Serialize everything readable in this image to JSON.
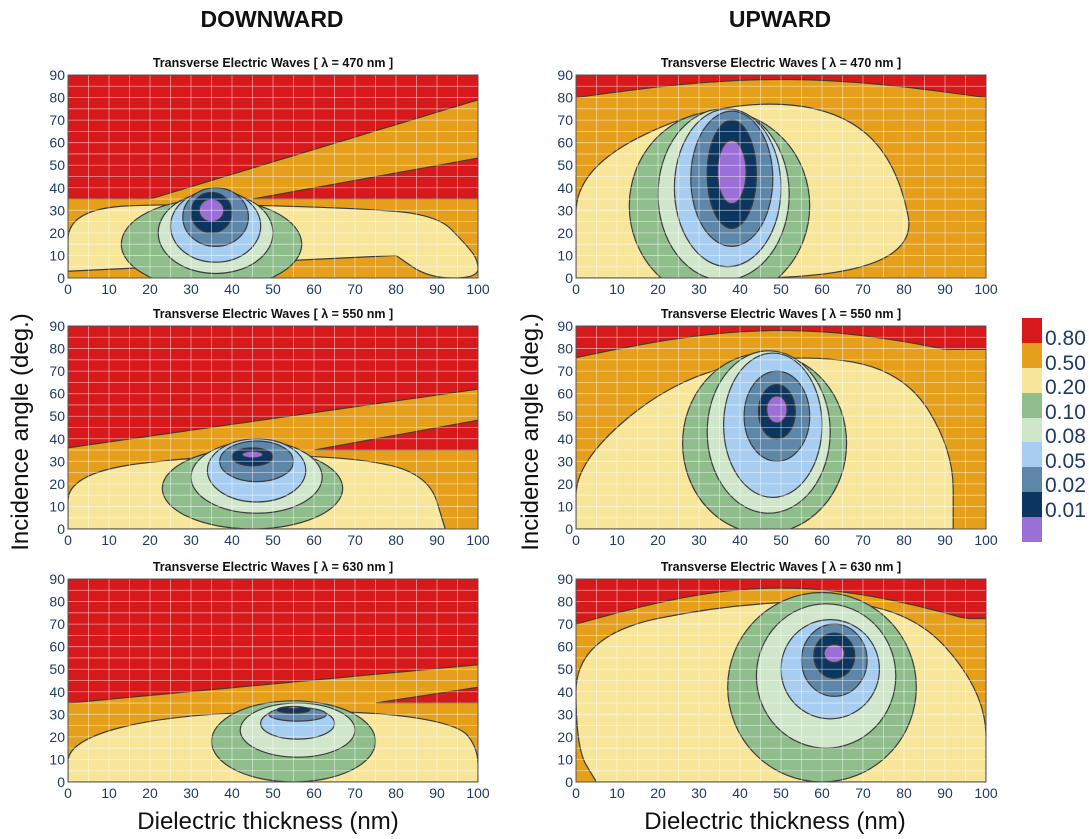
{
  "column_headings": {
    "left": "DOWNWARD",
    "right": "UPWARD"
  },
  "y_axis_label": "Incidence angle (deg.)",
  "x_axis_label": "Dielectric thickness (nm)",
  "colorbar": {
    "levels": [
      "0.80",
      "0.50",
      "0.20",
      "0.10",
      "0.08",
      "0.05",
      "0.02",
      "0.01"
    ],
    "colors": [
      "#d7191c",
      "#e59f1b",
      "#f7e69a",
      "#8fbe8c",
      "#cfe6cb",
      "#a7cdf0",
      "#5e86a8",
      "#0c3560",
      "#9a6fd6"
    ]
  },
  "chart_data": [
    {
      "type": "heatmap",
      "direction": "DOWNWARD",
      "wavelength_nm": 470,
      "title": "Transverse Electric Waves   [ λ = 470 nm ]",
      "xlim": [
        0,
        100
      ],
      "ylim": [
        0,
        90
      ],
      "x_ticks": [
        0,
        10,
        20,
        30,
        40,
        50,
        60,
        70,
        80,
        90,
        100
      ],
      "y_ticks": [
        0,
        10,
        20,
        30,
        40,
        50,
        60,
        70,
        80,
        90
      ],
      "grid": true,
      "min_value_location": {
        "x": 35,
        "y": 27
      }
    },
    {
      "type": "heatmap",
      "direction": "DOWNWARD",
      "wavelength_nm": 550,
      "title": "Transverse Electric Waves   [ λ = 550 nm ]",
      "xlim": [
        0,
        100
      ],
      "ylim": [
        0,
        90
      ],
      "x_ticks": [
        0,
        10,
        20,
        30,
        40,
        50,
        60,
        70,
        80,
        90,
        100
      ],
      "y_ticks": [
        0,
        10,
        20,
        30,
        40,
        50,
        60,
        70,
        80,
        90
      ],
      "grid": true,
      "min_value_location": {
        "x": 47,
        "y": 32
      }
    },
    {
      "type": "heatmap",
      "direction": "DOWNWARD",
      "wavelength_nm": 630,
      "title": "Transverse Electric Waves   [ λ = 630 nm ]",
      "xlim": [
        0,
        100
      ],
      "ylim": [
        0,
        90
      ],
      "x_ticks": [
        0,
        10,
        20,
        30,
        40,
        50,
        60,
        70,
        80,
        90,
        100
      ],
      "y_ticks": [
        0,
        10,
        20,
        30,
        40,
        50,
        60,
        70,
        80,
        90
      ],
      "grid": true,
      "min_value_location": {
        "x": 61,
        "y": 33
      }
    },
    {
      "type": "heatmap",
      "direction": "UPWARD",
      "wavelength_nm": 470,
      "title": "Transverse Electric Waves   [ λ = 470 nm ]",
      "xlim": [
        0,
        100
      ],
      "ylim": [
        0,
        90
      ],
      "x_ticks": [
        0,
        10,
        20,
        30,
        40,
        50,
        60,
        70,
        80,
        90,
        100
      ],
      "y_ticks": [
        0,
        10,
        20,
        30,
        40,
        50,
        60,
        70,
        80,
        90
      ],
      "grid": true,
      "min_value_location": {
        "x": 38,
        "y": 45
      }
    },
    {
      "type": "heatmap",
      "direction": "UPWARD",
      "wavelength_nm": 550,
      "title": "Transverse Electric Waves   [ λ = 550 nm ]",
      "xlim": [
        0,
        100
      ],
      "ylim": [
        0,
        90
      ],
      "x_ticks": [
        0,
        10,
        20,
        30,
        40,
        50,
        60,
        70,
        80,
        90,
        100
      ],
      "y_ticks": [
        0,
        10,
        20,
        30,
        40,
        50,
        60,
        70,
        80,
        90
      ],
      "grid": true,
      "min_value_location": {
        "x": 51,
        "y": 57
      }
    },
    {
      "type": "heatmap",
      "direction": "UPWARD",
      "wavelength_nm": 630,
      "title": "Transverse Electric Waves   [ λ = 630 nm ]",
      "xlim": [
        0,
        100
      ],
      "ylim": [
        0,
        90
      ],
      "x_ticks": [
        0,
        10,
        20,
        30,
        40,
        50,
        60,
        70,
        80,
        90,
        100
      ],
      "y_ticks": [
        0,
        10,
        20,
        30,
        40,
        50,
        60,
        70,
        80,
        90
      ],
      "grid": true,
      "min_value_location": {
        "x": 65,
        "y": 68
      }
    }
  ]
}
